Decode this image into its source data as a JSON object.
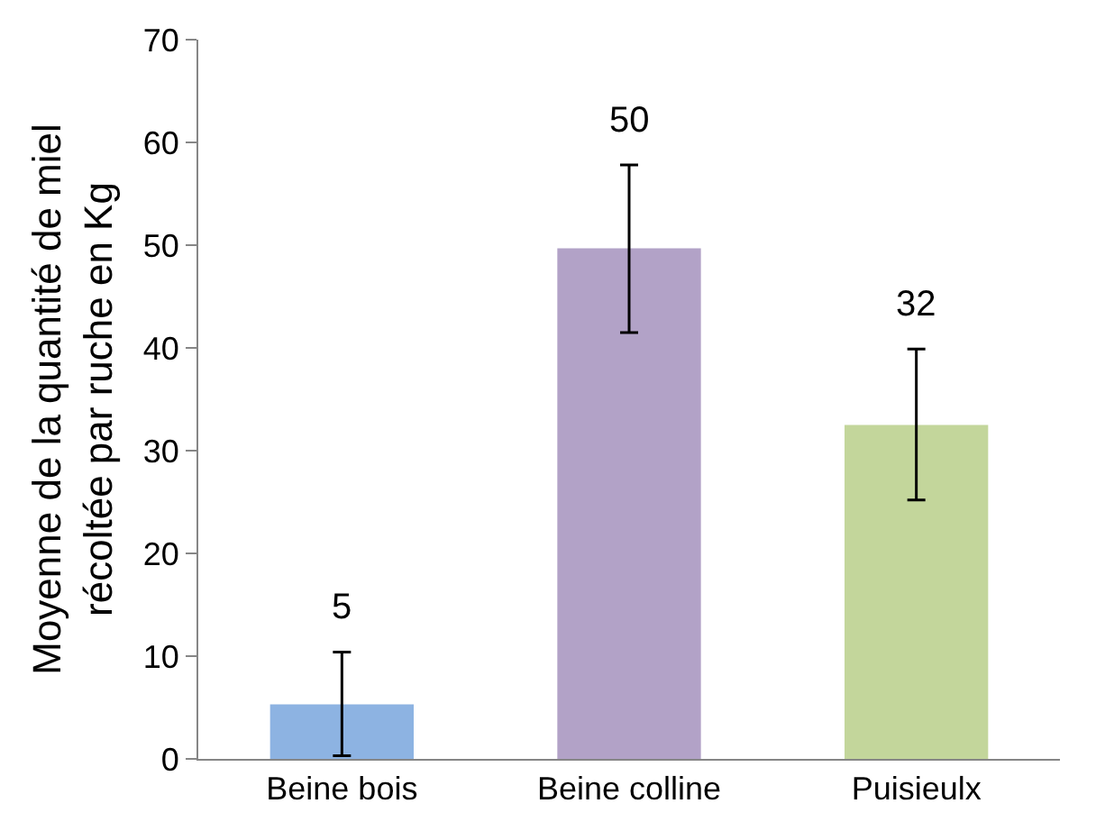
{
  "chart_data": {
    "type": "bar",
    "ylabel": "Moyenne de la quantité de miel\nrécoltée par ruche en Kg",
    "categories": [
      "Beine bois",
      "Beine colline",
      "Puisieulx"
    ],
    "values": [
      5.3,
      49.7,
      32.5
    ],
    "colors": [
      "#8db3e2",
      "#b2a2c7",
      "#c3d69b"
    ],
    "errors": [
      [
        0.3,
        10.4
      ],
      [
        41.5,
        57.8
      ],
      [
        25.2,
        39.9
      ]
    ],
    "value_labels": [
      "5",
      "50",
      "32"
    ],
    "ylim": [
      0,
      70
    ],
    "yticks": [
      0,
      10,
      20,
      30,
      40,
      50,
      60,
      70
    ]
  }
}
